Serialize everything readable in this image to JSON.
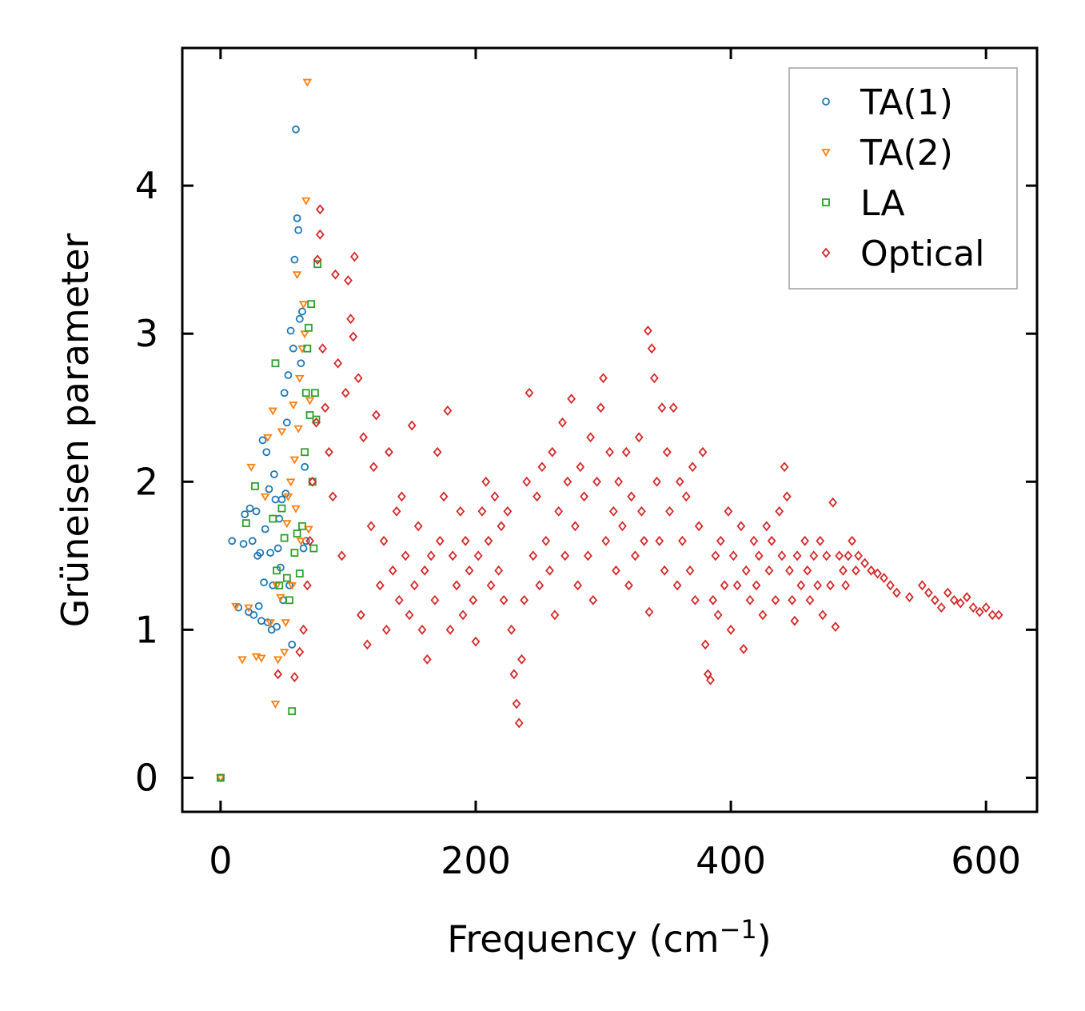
{
  "chart_data": {
    "type": "scatter",
    "title": "",
    "xlabel": "Frequency (cm",
    "xlabel_sup": "−1",
    "xlabel_close": ")",
    "ylabel": "Grüneisen parameter",
    "xlim": [
      -30,
      640
    ],
    "ylim": [
      -0.23,
      4.93
    ],
    "xticks": [
      0,
      200,
      400,
      600
    ],
    "yticks": [
      0,
      1,
      2,
      3,
      4
    ],
    "legend_position": "top-right",
    "series": [
      {
        "name": "TA(1)",
        "marker": "circle",
        "color": "#1f77b4",
        "points": [
          [
            0,
            0
          ],
          [
            9,
            1.6
          ],
          [
            14,
            1.15
          ],
          [
            18,
            1.58
          ],
          [
            19,
            1.78
          ],
          [
            22,
            1.12
          ],
          [
            23,
            1.82
          ],
          [
            25,
            1.6
          ],
          [
            26,
            1.1
          ],
          [
            28,
            1.8
          ],
          [
            29,
            1.5
          ],
          [
            30,
            1.16
          ],
          [
            31,
            1.52
          ],
          [
            32,
            1.06
          ],
          [
            33,
            2.28
          ],
          [
            34,
            1.32
          ],
          [
            35,
            1.68
          ],
          [
            36,
            2.2
          ],
          [
            37,
            1.05
          ],
          [
            38,
            1.95
          ],
          [
            39,
            1.52
          ],
          [
            40,
            1.0
          ],
          [
            41,
            1.3
          ],
          [
            42,
            2.05
          ],
          [
            43,
            1.88
          ],
          [
            44,
            1.02
          ],
          [
            45,
            1.55
          ],
          [
            46,
            1.75
          ],
          [
            47,
            1.42
          ],
          [
            48,
            1.88
          ],
          [
            49,
            1.2
          ],
          [
            50,
            2.6
          ],
          [
            51,
            1.92
          ],
          [
            52,
            2.4
          ],
          [
            53,
            2.72
          ],
          [
            54,
            1.3
          ],
          [
            55,
            3.02
          ],
          [
            56,
            0.9
          ],
          [
            57,
            2.9
          ],
          [
            58,
            3.5
          ],
          [
            59,
            4.38
          ],
          [
            60,
            3.78
          ],
          [
            61,
            3.7
          ],
          [
            62,
            3.1
          ],
          [
            63,
            2.8
          ],
          [
            64,
            3.15
          ],
          [
            65,
            1.55
          ],
          [
            66,
            2.1
          ],
          [
            67,
            1.6
          ]
        ]
      },
      {
        "name": "TA(2)",
        "marker": "triangle-down",
        "color": "#ff7f0e",
        "points": [
          [
            0,
            0
          ],
          [
            12,
            1.16
          ],
          [
            17,
            0.8
          ],
          [
            22,
            1.15
          ],
          [
            24,
            2.1
          ],
          [
            28,
            0.82
          ],
          [
            32,
            0.81
          ],
          [
            35,
            1.9
          ],
          [
            37,
            2.3
          ],
          [
            39,
            1.05
          ],
          [
            41,
            2.48
          ],
          [
            43,
            0.5
          ],
          [
            44,
            1.3
          ],
          [
            45,
            0.8
          ],
          [
            47,
            1.22
          ],
          [
            48,
            2.34
          ],
          [
            50,
            0.85
          ],
          [
            51,
            1.05
          ],
          [
            52,
            1.72
          ],
          [
            53,
            1.9
          ],
          [
            55,
            2.0
          ],
          [
            56,
            1.3
          ],
          [
            57,
            2.52
          ],
          [
            58,
            2.15
          ],
          [
            59,
            1.82
          ],
          [
            60,
            3.4
          ],
          [
            61,
            2.36
          ],
          [
            62,
            2.7
          ],
          [
            63,
            1.6
          ],
          [
            64,
            2.9
          ],
          [
            65,
            3.2
          ],
          [
            66,
            3.0
          ],
          [
            67,
            3.9
          ],
          [
            68,
            4.7
          ],
          [
            69,
            1.68
          ],
          [
            70,
            2.55
          ]
        ]
      },
      {
        "name": "LA",
        "marker": "square",
        "color": "#2ca02c",
        "points": [
          [
            0,
            0
          ],
          [
            20,
            1.72
          ],
          [
            27,
            1.97
          ],
          [
            41,
            1.75
          ],
          [
            43,
            2.8
          ],
          [
            44,
            1.4
          ],
          [
            46,
            1.3
          ],
          [
            48,
            1.82
          ],
          [
            50,
            1.62
          ],
          [
            52,
            1.35
          ],
          [
            54,
            1.2
          ],
          [
            56,
            0.45
          ],
          [
            58,
            1.52
          ],
          [
            60,
            1.65
          ],
          [
            62,
            1.38
          ],
          [
            64,
            1.7
          ],
          [
            66,
            2.2
          ],
          [
            67,
            2.6
          ],
          [
            68,
            2.9
          ],
          [
            69,
            3.04
          ],
          [
            70,
            2.45
          ],
          [
            71,
            3.2
          ],
          [
            72,
            2.0
          ],
          [
            73,
            1.55
          ],
          [
            74,
            2.6
          ],
          [
            75,
            2.42
          ],
          [
            76,
            3.47
          ]
        ]
      },
      {
        "name": "Optical",
        "marker": "diamond",
        "color": "#d62728",
        "points": [
          [
            45,
            0.7
          ],
          [
            58,
            0.68
          ],
          [
            62,
            0.85
          ],
          [
            65,
            1.0
          ],
          [
            68,
            1.3
          ],
          [
            70,
            1.6
          ],
          [
            72,
            2.0
          ],
          [
            75,
            2.4
          ],
          [
            76,
            3.5
          ],
          [
            78,
            3.84
          ],
          [
            78,
            3.67
          ],
          [
            80,
            2.9
          ],
          [
            82,
            2.5
          ],
          [
            85,
            2.2
          ],
          [
            88,
            1.9
          ],
          [
            90,
            3.4
          ],
          [
            92,
            2.8
          ],
          [
            95,
            1.5
          ],
          [
            98,
            2.6
          ],
          [
            100,
            3.36
          ],
          [
            102,
            3.1
          ],
          [
            104,
            2.98
          ],
          [
            105,
            3.52
          ],
          [
            108,
            2.7
          ],
          [
            110,
            1.1
          ],
          [
            112,
            2.3
          ],
          [
            115,
            0.9
          ],
          [
            118,
            1.7
          ],
          [
            120,
            2.1
          ],
          [
            122,
            2.45
          ],
          [
            125,
            1.3
          ],
          [
            128,
            1.6
          ],
          [
            130,
            1.0
          ],
          [
            132,
            2.2
          ],
          [
            135,
            1.4
          ],
          [
            138,
            1.8
          ],
          [
            140,
            1.2
          ],
          [
            142,
            1.9
          ],
          [
            145,
            1.5
          ],
          [
            148,
            1.1
          ],
          [
            150,
            2.38
          ],
          [
            152,
            1.3
          ],
          [
            155,
            1.7
          ],
          [
            158,
            1.0
          ],
          [
            160,
            1.4
          ],
          [
            162,
            0.8
          ],
          [
            165,
            1.5
          ],
          [
            168,
            1.2
          ],
          [
            170,
            2.2
          ],
          [
            172,
            1.6
          ],
          [
            175,
            1.9
          ],
          [
            178,
            2.48
          ],
          [
            180,
            1.0
          ],
          [
            182,
            1.5
          ],
          [
            185,
            1.3
          ],
          [
            188,
            1.8
          ],
          [
            190,
            1.1
          ],
          [
            192,
            1.6
          ],
          [
            195,
            1.4
          ],
          [
            198,
            1.2
          ],
          [
            200,
            0.92
          ],
          [
            202,
            1.5
          ],
          [
            205,
            1.8
          ],
          [
            208,
            2.0
          ],
          [
            210,
            1.6
          ],
          [
            212,
            1.3
          ],
          [
            215,
            1.9
          ],
          [
            218,
            1.4
          ],
          [
            220,
            1.7
          ],
          [
            222,
            1.2
          ],
          [
            225,
            1.8
          ],
          [
            228,
            1.0
          ],
          [
            230,
            0.7
          ],
          [
            232,
            0.5
          ],
          [
            234,
            0.37
          ],
          [
            236,
            0.8
          ],
          [
            238,
            1.2
          ],
          [
            240,
            2.0
          ],
          [
            242,
            2.6
          ],
          [
            245,
            1.5
          ],
          [
            248,
            1.9
          ],
          [
            250,
            1.3
          ],
          [
            252,
            2.1
          ],
          [
            255,
            1.6
          ],
          [
            258,
            1.4
          ],
          [
            260,
            2.2
          ],
          [
            262,
            1.1
          ],
          [
            265,
            1.8
          ],
          [
            268,
            2.4
          ],
          [
            270,
            1.5
          ],
          [
            272,
            2.0
          ],
          [
            275,
            2.56
          ],
          [
            278,
            1.7
          ],
          [
            280,
            1.3
          ],
          [
            282,
            2.1
          ],
          [
            285,
            1.9
          ],
          [
            288,
            1.5
          ],
          [
            290,
            2.3
          ],
          [
            292,
            1.2
          ],
          [
            295,
            2.0
          ],
          [
            298,
            2.5
          ],
          [
            300,
            2.7
          ],
          [
            302,
            1.6
          ],
          [
            305,
            2.2
          ],
          [
            308,
            1.8
          ],
          [
            310,
            1.4
          ],
          [
            312,
            2.0
          ],
          [
            315,
            1.7
          ],
          [
            318,
            2.2
          ],
          [
            320,
            1.3
          ],
          [
            322,
            1.9
          ],
          [
            325,
            1.5
          ],
          [
            328,
            2.3
          ],
          [
            330,
            1.8
          ],
          [
            332,
            1.6
          ],
          [
            335,
            3.02
          ],
          [
            336,
            1.12
          ],
          [
            338,
            2.9
          ],
          [
            340,
            2.7
          ],
          [
            342,
            2.0
          ],
          [
            344,
            1.6
          ],
          [
            346,
            2.5
          ],
          [
            348,
            1.4
          ],
          [
            350,
            2.2
          ],
          [
            352,
            1.8
          ],
          [
            355,
            2.5
          ],
          [
            358,
            1.3
          ],
          [
            360,
            2.0
          ],
          [
            362,
            1.6
          ],
          [
            365,
            1.9
          ],
          [
            368,
            1.4
          ],
          [
            370,
            2.1
          ],
          [
            372,
            1.2
          ],
          [
            375,
            1.7
          ],
          [
            378,
            2.2
          ],
          [
            380,
            0.9
          ],
          [
            382,
            0.7
          ],
          [
            384,
            0.66
          ],
          [
            386,
            1.2
          ],
          [
            388,
            1.5
          ],
          [
            390,
            1.1
          ],
          [
            392,
            1.6
          ],
          [
            395,
            1.3
          ],
          [
            398,
            1.8
          ],
          [
            400,
            1.0
          ],
          [
            402,
            1.5
          ],
          [
            405,
            1.3
          ],
          [
            408,
            1.7
          ],
          [
            410,
            0.87
          ],
          [
            412,
            1.4
          ],
          [
            415,
            1.2
          ],
          [
            418,
            1.6
          ],
          [
            420,
            1.3
          ],
          [
            422,
            1.5
          ],
          [
            425,
            1.1
          ],
          [
            428,
            1.7
          ],
          [
            430,
            1.4
          ],
          [
            432,
            1.6
          ],
          [
            435,
            1.2
          ],
          [
            438,
            1.8
          ],
          [
            440,
            1.5
          ],
          [
            442,
            2.1
          ],
          [
            444,
            1.9
          ],
          [
            446,
            1.4
          ],
          [
            448,
            1.2
          ],
          [
            450,
            1.06
          ],
          [
            452,
            1.5
          ],
          [
            455,
            1.3
          ],
          [
            458,
            1.6
          ],
          [
            460,
            1.4
          ],
          [
            462,
            1.2
          ],
          [
            465,
            1.5
          ],
          [
            468,
            1.3
          ],
          [
            470,
            1.6
          ],
          [
            472,
            1.1
          ],
          [
            475,
            1.5
          ],
          [
            478,
            1.3
          ],
          [
            480,
            1.86
          ],
          [
            482,
            1.02
          ],
          [
            485,
            1.5
          ],
          [
            488,
            1.4
          ],
          [
            490,
            1.3
          ],
          [
            492,
            1.5
          ],
          [
            495,
            1.6
          ],
          [
            498,
            1.4
          ],
          [
            500,
            1.5
          ],
          [
            505,
            1.45
          ],
          [
            510,
            1.4
          ],
          [
            515,
            1.38
          ],
          [
            520,
            1.35
          ],
          [
            525,
            1.3
          ],
          [
            530,
            1.25
          ],
          [
            540,
            1.22
          ],
          [
            550,
            1.3
          ],
          [
            555,
            1.25
          ],
          [
            560,
            1.2
          ],
          [
            565,
            1.15
          ],
          [
            570,
            1.25
          ],
          [
            575,
            1.2
          ],
          [
            580,
            1.18
          ],
          [
            585,
            1.22
          ],
          [
            590,
            1.15
          ],
          [
            595,
            1.12
          ],
          [
            600,
            1.15
          ],
          [
            605,
            1.1
          ],
          [
            610,
            1.1
          ]
        ]
      }
    ]
  }
}
